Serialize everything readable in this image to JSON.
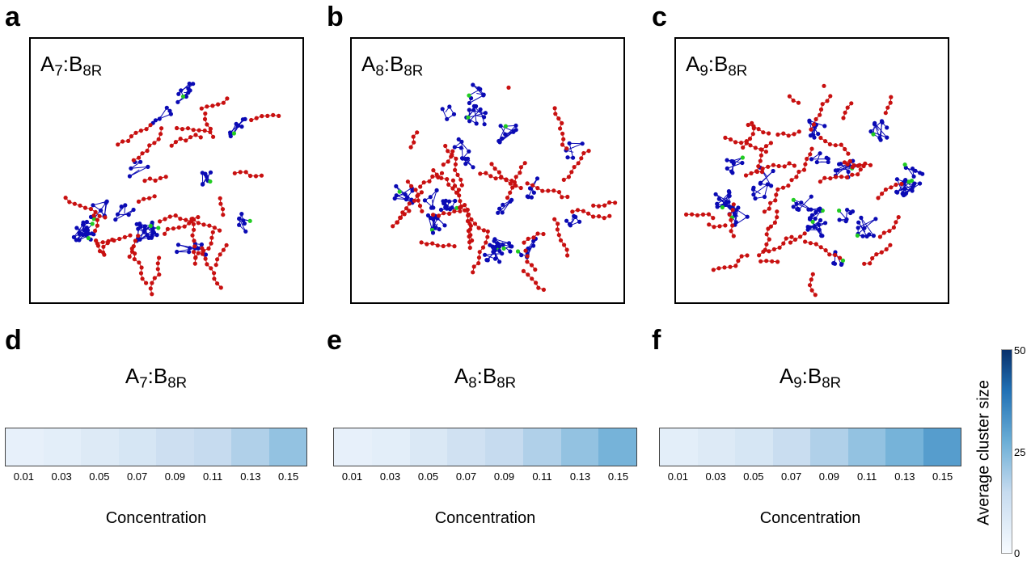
{
  "panel_labels": [
    "a",
    "b",
    "c",
    "d",
    "e",
    "f"
  ],
  "snapshots": [
    {
      "prefix": "A",
      "sub_a": "7",
      "mid": ":B",
      "sub_b": "8R"
    },
    {
      "prefix": "A",
      "sub_a": "8",
      "mid": ":B",
      "sub_b": "8R"
    },
    {
      "prefix": "A",
      "sub_a": "9",
      "mid": ":B",
      "sub_b": "8R"
    }
  ],
  "colors": {
    "A_particles": "#0a0ab4",
    "B_particles": "#c81010",
    "bridging": "#22cc22"
  },
  "chart_data": [
    {
      "type": "heatmap",
      "title": "A7:B8R",
      "xlabel": "Concentration",
      "categories": [
        "0.01",
        "0.03",
        "0.05",
        "0.07",
        "0.09",
        "0.11",
        "0.13",
        "0.15"
      ],
      "values": [
        5,
        6,
        8,
        10,
        13,
        15,
        18,
        22
      ]
    },
    {
      "type": "heatmap",
      "title": "A8:B8R",
      "xlabel": "Concentration",
      "categories": [
        "0.01",
        "0.03",
        "0.05",
        "0.07",
        "0.09",
        "0.11",
        "0.13",
        "0.15"
      ],
      "values": [
        5,
        6,
        9,
        12,
        15,
        18,
        22,
        26
      ]
    },
    {
      "type": "heatmap",
      "title": "A9:B8R",
      "xlabel": "Concentration",
      "categories": [
        "0.01",
        "0.03",
        "0.05",
        "0.07",
        "0.09",
        "0.11",
        "0.13",
        "0.15"
      ],
      "values": [
        6,
        8,
        10,
        14,
        18,
        22,
        26,
        31
      ]
    }
  ],
  "colorbar": {
    "label": "Average cluster size",
    "ticks": [
      "50",
      "25",
      "0"
    ],
    "min": 0,
    "max": 50
  }
}
